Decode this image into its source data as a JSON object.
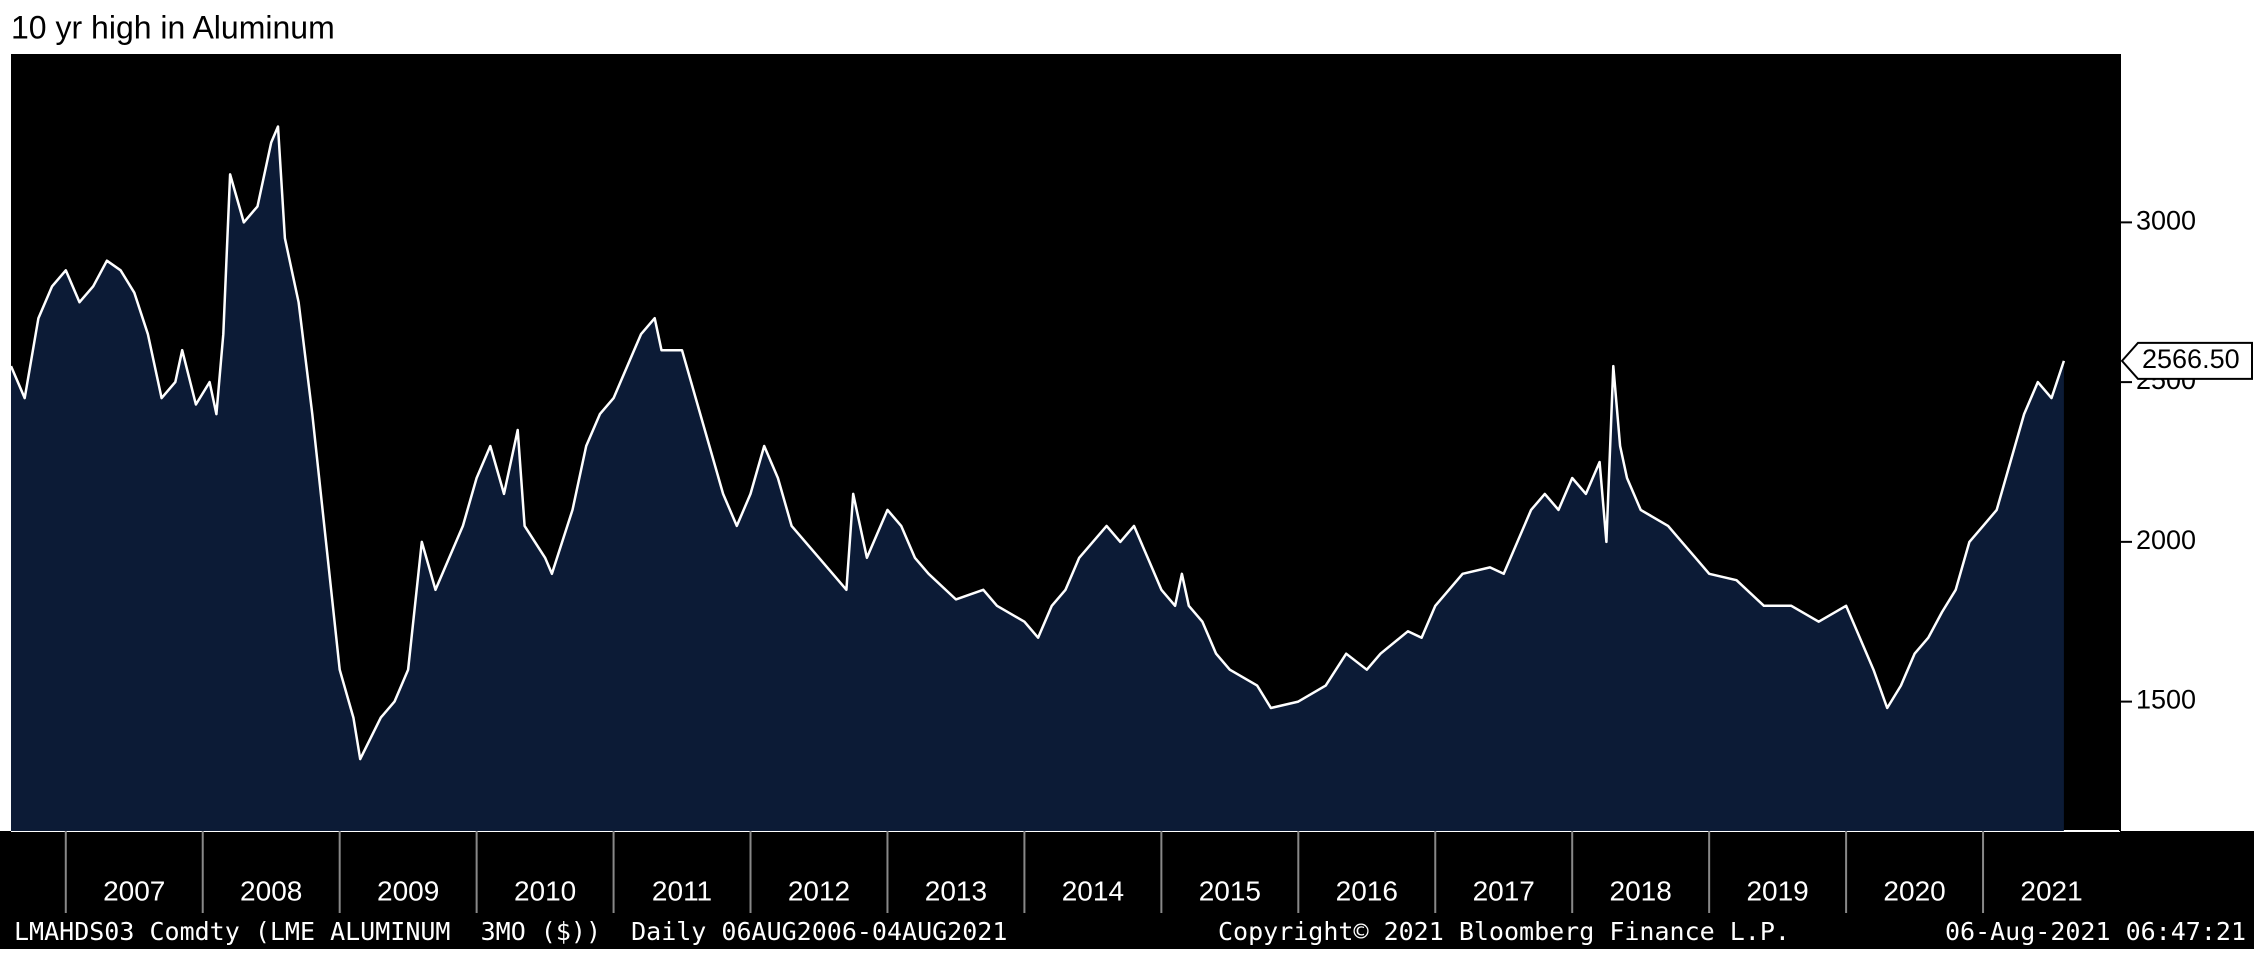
{
  "chart_data": {
    "type": "area",
    "title": "10 yr high in Aluminum",
    "x": [
      2006.6,
      2006.7,
      2006.8,
      2006.9,
      2007.0,
      2007.1,
      2007.2,
      2007.3,
      2007.4,
      2007.5,
      2007.6,
      2007.7,
      2007.8,
      2007.85,
      2007.95,
      2008.05,
      2008.1,
      2008.15,
      2008.2,
      2008.3,
      2008.4,
      2008.5,
      2008.55,
      2008.6,
      2008.7,
      2008.8,
      2008.9,
      2009.0,
      2009.1,
      2009.15,
      2009.3,
      2009.4,
      2009.5,
      2009.6,
      2009.7,
      2009.8,
      2009.9,
      2010.0,
      2010.1,
      2010.2,
      2010.3,
      2010.35,
      2010.5,
      2010.55,
      2010.7,
      2010.8,
      2010.9,
      2011.0,
      2011.1,
      2011.2,
      2011.3,
      2011.35,
      2011.5,
      2011.6,
      2011.7,
      2011.8,
      2011.9,
      2012.0,
      2012.1,
      2012.2,
      2012.3,
      2012.5,
      2012.6,
      2012.7,
      2012.75,
      2012.85,
      2013.0,
      2013.1,
      2013.2,
      2013.3,
      2013.5,
      2013.7,
      2013.8,
      2014.0,
      2014.1,
      2014.2,
      2014.3,
      2014.4,
      2014.6,
      2014.7,
      2014.8,
      2014.9,
      2015.0,
      2015.1,
      2015.15,
      2015.2,
      2015.3,
      2015.4,
      2015.5,
      2015.7,
      2015.8,
      2016.0,
      2016.2,
      2016.35,
      2016.5,
      2016.6,
      2016.8,
      2016.9,
      2017.0,
      2017.2,
      2017.4,
      2017.5,
      2017.7,
      2017.8,
      2017.9,
      2018.0,
      2018.1,
      2018.2,
      2018.25,
      2018.3,
      2018.35,
      2018.4,
      2018.5,
      2018.7,
      2018.8,
      2018.9,
      2019.0,
      2019.2,
      2019.4,
      2019.6,
      2019.8,
      2020.0,
      2020.1,
      2020.2,
      2020.3,
      2020.4,
      2020.5,
      2020.6,
      2020.7,
      2020.8,
      2020.9,
      2021.0,
      2021.1,
      2021.2,
      2021.3,
      2021.4,
      2021.5,
      2021.59
    ],
    "series": [
      {
        "name": "LMAHDS03 Comdty",
        "color": "#ffffff",
        "fill": "#0c1b36",
        "values": [
          2550,
          2450,
          2700,
          2800,
          2850,
          2750,
          2800,
          2880,
          2850,
          2780,
          2650,
          2450,
          2500,
          2600,
          2430,
          2500,
          2400,
          2650,
          3150,
          3000,
          3050,
          3250,
          3300,
          2950,
          2750,
          2400,
          2000,
          1600,
          1450,
          1320,
          1450,
          1500,
          1600,
          2000,
          1850,
          1950,
          2050,
          2200,
          2300,
          2150,
          2350,
          2050,
          1950,
          1900,
          2100,
          2300,
          2400,
          2450,
          2550,
          2650,
          2700,
          2600,
          2600,
          2450,
          2300,
          2150,
          2050,
          2150,
          2300,
          2200,
          2050,
          1950,
          1900,
          1850,
          2150,
          1950,
          2100,
          2050,
          1950,
          1900,
          1820,
          1850,
          1800,
          1750,
          1700,
          1800,
          1850,
          1950,
          2050,
          2000,
          2050,
          1950,
          1850,
          1800,
          1900,
          1800,
          1750,
          1650,
          1600,
          1550,
          1480,
          1500,
          1550,
          1650,
          1600,
          1650,
          1720,
          1700,
          1800,
          1900,
          1920,
          1900,
          2100,
          2150,
          2100,
          2200,
          2150,
          2250,
          2000,
          2550,
          2300,
          2200,
          2100,
          2050,
          2000,
          1950,
          1900,
          1880,
          1800,
          1800,
          1750,
          1800,
          1700,
          1600,
          1480,
          1550,
          1650,
          1700,
          1780,
          1850,
          2000,
          2050,
          2100,
          2250,
          2400,
          2500,
          2450,
          2566.5
        ]
      }
    ],
    "last_price": {
      "value": 2566.5,
      "label": "2566.50"
    },
    "xlim": [
      2006.6,
      2022.0
    ],
    "xticks": [
      2007,
      2008,
      2009,
      2010,
      2011,
      2012,
      2013,
      2014,
      2015,
      2016,
      2017,
      2018,
      2019,
      2020,
      2021
    ],
    "ylim": [
      1095,
      3527
    ],
    "yticks": [
      1500,
      2000,
      2500,
      3000
    ],
    "background": "#000000",
    "footer": {
      "left": "LMAHDS03 Comdty (LME ALUMINUM  3MO ($))  Daily 06AUG2006-04AUG2021",
      "center": "Copyright© 2021 Bloomberg Finance L.P.",
      "right": "06-Aug-2021 06:47:21"
    }
  }
}
